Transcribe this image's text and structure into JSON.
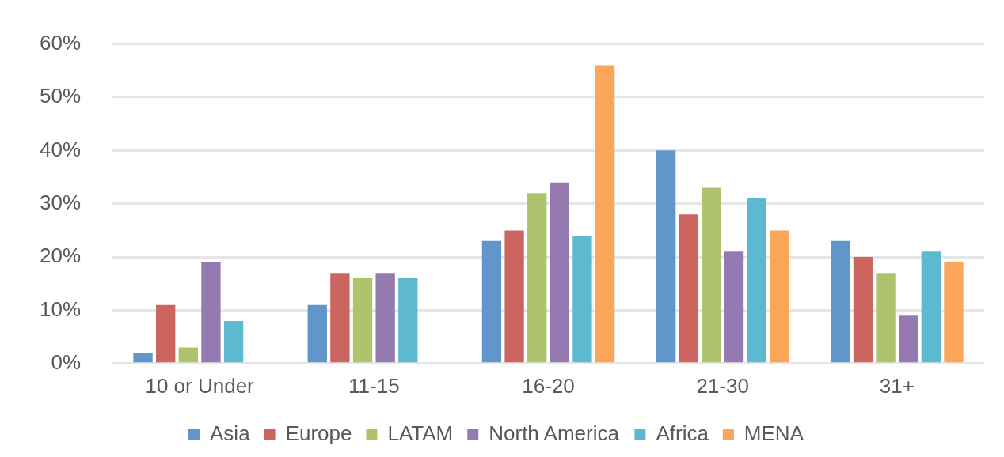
{
  "chart_data": {
    "type": "bar",
    "categories": [
      "10 or Under",
      "11-15",
      "16-20",
      "21-30",
      "31+"
    ],
    "series": [
      {
        "name": "Asia",
        "color": "#6096c9",
        "values": [
          2,
          11,
          23,
          40,
          23
        ]
      },
      {
        "name": "Europe",
        "color": "#cc6560",
        "values": [
          11,
          17,
          25,
          28,
          20
        ]
      },
      {
        "name": "LATAM",
        "color": "#aec36c",
        "values": [
          3,
          16,
          32,
          33,
          17
        ]
      },
      {
        "name": "North America",
        "color": "#957ab2",
        "values": [
          19,
          17,
          34,
          21,
          9
        ]
      },
      {
        "name": "Africa",
        "color": "#5db9d0",
        "values": [
          8,
          16,
          24,
          31,
          21
        ]
      },
      {
        "name": "MENA",
        "color": "#f9a659",
        "values": [
          null,
          null,
          56,
          25,
          19
        ]
      }
    ],
    "ylim": [
      0,
      60
    ],
    "yticks": [
      {
        "value": 0,
        "label": "0%"
      },
      {
        "value": 10,
        "label": "10%"
      },
      {
        "value": 20,
        "label": "20%"
      },
      {
        "value": 30,
        "label": "30%"
      },
      {
        "value": 40,
        "label": "40%"
      },
      {
        "value": 50,
        "label": "50%"
      },
      {
        "value": 60,
        "label": "60%"
      }
    ],
    "grid": "y",
    "legend": "bottom"
  }
}
